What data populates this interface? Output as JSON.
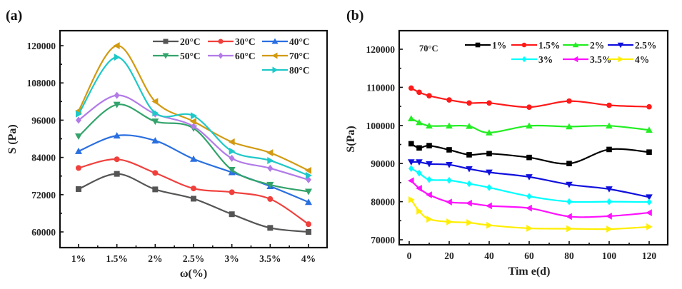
{
  "chart_data": [
    {
      "id": "a",
      "panel_label": "(a)",
      "type": "line",
      "title": "",
      "xlabel": "ω(%)",
      "ylabel": "S (Pa)",
      "categories": [
        "1%",
        "1.5%",
        "2%",
        "2.5%",
        "3%",
        "3.5%",
        "4%"
      ],
      "yticks": [
        60000,
        72000,
        84000,
        96000,
        108000,
        120000
      ],
      "ylim": [
        55000,
        124500
      ],
      "grid": false,
      "legend": "top-right",
      "smooth": true,
      "series": [
        {
          "name": "20°C",
          "color": "#555555",
          "marker": "square",
          "values": [
            73800,
            78700,
            73700,
            70700,
            65700,
            61300,
            60000
          ]
        },
        {
          "name": "30°C",
          "color": "#f0403c",
          "marker": "circle",
          "values": [
            80600,
            83400,
            79000,
            74000,
            72800,
            70600,
            62500
          ]
        },
        {
          "name": "40°C",
          "color": "#2a6fe0",
          "marker": "triangle-up",
          "values": [
            86000,
            91000,
            89400,
            83500,
            79200,
            74700,
            69600
          ]
        },
        {
          "name": "50°C",
          "color": "#33a36b",
          "marker": "triangle-down",
          "values": [
            90800,
            101000,
            95600,
            93400,
            80000,
            75200,
            73000
          ]
        },
        {
          "name": "60°C",
          "color": "#b27be8",
          "marker": "diamond",
          "values": [
            96000,
            104000,
            98000,
            94000,
            83700,
            80500,
            76800
          ]
        },
        {
          "name": "70°C",
          "color": "#d29a12",
          "marker": "triangle-left",
          "values": [
            99000,
            120000,
            102000,
            95600,
            89000,
            85500,
            79800
          ]
        },
        {
          "name": "80°C",
          "color": "#1fc8c8",
          "marker": "triangle-right",
          "values": [
            98000,
            116300,
            98300,
            97400,
            86000,
            83000,
            78200
          ]
        }
      ]
    },
    {
      "id": "b",
      "panel_label": "(b)",
      "type": "line",
      "title": "",
      "annotation": "70°C",
      "xlabel": "Tim e(d)",
      "ylabel": "S(Pa)",
      "x": [
        1,
        5,
        10,
        20,
        30,
        40,
        60,
        80,
        100,
        120
      ],
      "xticks": [
        0,
        20,
        40,
        60,
        80,
        100,
        120
      ],
      "xlim": [
        -5,
        135
      ],
      "yticks": [
        70000,
        80000,
        90000,
        100000,
        110000,
        120000
      ],
      "ylim": [
        68700,
        124900
      ],
      "grid": false,
      "legend": "top-right",
      "smooth": true,
      "series": [
        {
          "name": "1%",
          "color": "#000000",
          "marker": "square",
          "values": [
            95200,
            94100,
            94700,
            93600,
            92300,
            92600,
            91600,
            90000,
            93700,
            93000
          ]
        },
        {
          "name": "1.5%",
          "color": "#ff1a1a",
          "marker": "circle",
          "values": [
            109800,
            108700,
            107800,
            106700,
            105900,
            105900,
            104800,
            106400,
            105300,
            104900
          ]
        },
        {
          "name": "2%",
          "color": "#22ee22",
          "marker": "triangle-up",
          "values": [
            101800,
            100800,
            99900,
            99900,
            99800,
            98100,
            99900,
            99700,
            99900,
            98800
          ]
        },
        {
          "name": "2.5%",
          "color": "#1010dd",
          "marker": "triangle-down",
          "values": [
            90400,
            90400,
            89900,
            89700,
            88600,
            87700,
            86500,
            84500,
            83300,
            81200
          ]
        },
        {
          "name": "3%",
          "color": "#00ffff",
          "marker": "diamond",
          "values": [
            88700,
            87500,
            85800,
            85600,
            84700,
            83700,
            81400,
            80000,
            80000,
            79900
          ]
        },
        {
          "name": "3.5%",
          "color": "#ff10ff",
          "marker": "triangle-left",
          "values": [
            85500,
            83500,
            81800,
            79900,
            79600,
            78900,
            78300,
            76100,
            76200,
            77100
          ]
        },
        {
          "name": "4%",
          "color": "#ffee00",
          "marker": "triangle-right",
          "values": [
            80500,
            77500,
            75400,
            74700,
            74500,
            73800,
            73000,
            72900,
            72800,
            73400
          ]
        }
      ]
    }
  ]
}
